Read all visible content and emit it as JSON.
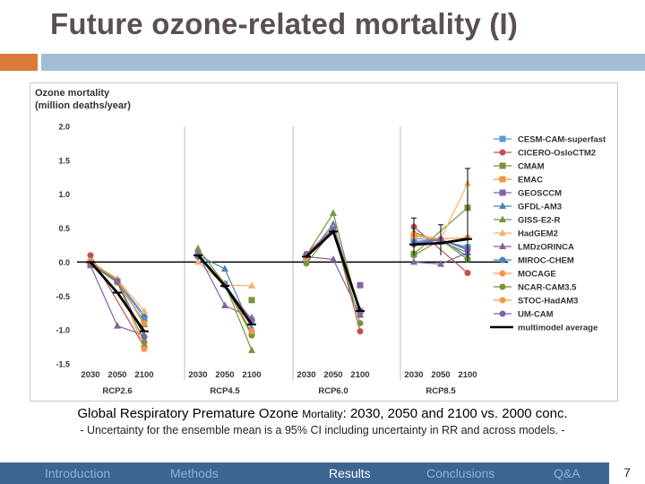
{
  "slide": {
    "title": "Future ozone-related mortality (I)",
    "caption_main": "Global Respiratory Premature Ozone",
    "caption_small": "Mortality",
    "caption_rest": ": 2030, 2050 and 2100 vs. 2000 conc.",
    "caption_note": "- Uncertainty for the ensemble mean is a 95% CI including uncertainty in RR and across models. -",
    "page_number": "7",
    "colors": {
      "orange_bar": "#dc7a3c",
      "blue_bar": "#a4bdd5",
      "nav_bg": "#3d6591"
    }
  },
  "nav": {
    "items": [
      {
        "label": "Introduction",
        "active": false
      },
      {
        "label": "Methods",
        "active": false
      },
      {
        "label": "Results",
        "active": true
      },
      {
        "label": "Conclusions",
        "active": false
      },
      {
        "label": "Q&A",
        "active": false
      }
    ]
  },
  "chart_data": {
    "type": "line",
    "ylabel_line1": "Ozone mortality",
    "ylabel_line2": "(million deaths/year)",
    "ylim": [
      -1.5,
      2.0
    ],
    "yticks": [
      "2.0",
      "1.5",
      "1.0",
      "0.5",
      "0.0",
      "-0.5",
      "-1.0",
      "-1.5"
    ],
    "groups": [
      "RCP2.6",
      "RCP4.5",
      "RCP6.0",
      "RCP8.5"
    ],
    "x": [
      "2030",
      "2050",
      "2100"
    ],
    "grid": false,
    "legend_position": "right",
    "series": [
      {
        "name": "CESM-CAM-superfast",
        "color": "#5b9bd5",
        "marker": "square",
        "values": [
          [
            -0.03,
            -0.28,
            -0.82
          ],
          [
            0.12,
            -0.32,
            -0.88
          ],
          [
            0.08,
            0.48,
            -0.72
          ],
          [
            0.35,
            0.32,
            0.22
          ]
        ]
      },
      {
        "name": "CICERO-OsloCTM2",
        "color": "#c0504d",
        "marker": "circle",
        "values": [
          [
            0.1,
            null,
            -1.25
          ],
          [
            null,
            null,
            null
          ],
          [
            0.12,
            0.5,
            -1.02
          ],
          [
            0.52,
            null,
            -0.16
          ]
        ]
      },
      {
        "name": "CMAM",
        "color": "#77933c",
        "marker": "square",
        "values": [
          [
            null,
            null,
            null
          ],
          [
            null,
            null,
            -0.56
          ],
          [
            null,
            null,
            null
          ],
          [
            0.12,
            null,
            0.8
          ]
        ]
      },
      {
        "name": "EMAC",
        "color": "#f79646",
        "marker": "square",
        "values": [
          [
            null,
            null,
            null
          ],
          [
            null,
            null,
            null
          ],
          [
            null,
            null,
            null
          ],
          [
            null,
            null,
            null
          ]
        ]
      },
      {
        "name": "GEOSCCM",
        "color": "#8064a2",
        "marker": "square",
        "values": [
          [
            null,
            null,
            null
          ],
          [
            null,
            null,
            null
          ],
          [
            null,
            null,
            -0.34
          ],
          [
            null,
            null,
            null
          ]
        ]
      },
      {
        "name": "GFDL-AM3",
        "color": "#4f81bd",
        "marker": "triangle",
        "values": [
          [
            -0.02,
            -0.28,
            -0.78
          ],
          [
            0.1,
            -0.1,
            -0.98
          ],
          [
            0.06,
            0.56,
            -0.72
          ],
          [
            0.3,
            0.34,
            0.08
          ]
        ]
      },
      {
        "name": "GISS-E2-R",
        "color": "#77933c",
        "marker": "triangle",
        "values": [
          [
            0.0,
            -0.25,
            -0.92
          ],
          [
            0.2,
            -0.32,
            -1.3
          ],
          [
            0.1,
            0.72,
            -0.78
          ],
          [
            0.44,
            0.3,
            0.14
          ]
        ]
      },
      {
        "name": "HadGEM2",
        "color": "#f7b26a",
        "marker": "triangle",
        "values": [
          [
            -0.02,
            -0.26,
            -0.72
          ],
          [
            0.0,
            -0.34,
            -0.35
          ],
          [
            0.08,
            0.5,
            -0.7
          ],
          [
            0.38,
            0.34,
            1.16
          ]
        ]
      },
      {
        "name": "LMDzORINCA",
        "color": "#8064a2",
        "marker": "triangle",
        "values": [
          [
            -0.05,
            -0.94,
            -1.08
          ],
          [
            0.12,
            -0.64,
            -0.82
          ],
          [
            0.08,
            0.04,
            -0.78
          ],
          [
            0.0,
            -0.03,
            0.14
          ]
        ]
      },
      {
        "name": "MIROC-CHEM",
        "color": "#4f81bd",
        "marker": "circle",
        "values": [
          [
            -0.02,
            -0.3,
            -0.88
          ],
          [
            0.08,
            -0.34,
            -1.06
          ],
          [
            0.08,
            0.46,
            -0.72
          ],
          [
            0.28,
            0.33,
            0.2
          ]
        ]
      },
      {
        "name": "MOCAGE",
        "color": "#f79646",
        "marker": "circle",
        "values": [
          [
            -0.03,
            -0.27,
            -1.28
          ],
          [
            null,
            null,
            null
          ],
          [
            null,
            null,
            null
          ],
          [
            null,
            null,
            null
          ]
        ]
      },
      {
        "name": "NCAR-CAM3.5",
        "color": "#77933c",
        "marker": "circle",
        "values": [
          [
            -0.03,
            -0.3,
            -1.18
          ],
          [
            0.1,
            -0.33,
            -1.08
          ],
          [
            -0.02,
            0.48,
            -0.9
          ],
          [
            0.1,
            0.33,
            0.04
          ]
        ]
      },
      {
        "name": "STOC-HadAM3",
        "color": "#f79646",
        "marker": "circle",
        "values": [
          [
            0.02,
            -0.27,
            -0.9
          ],
          [
            0.1,
            -0.33,
            -1.02
          ],
          [
            0.06,
            0.48,
            -0.74
          ],
          [
            0.4,
            0.34,
            0.36
          ]
        ]
      },
      {
        "name": "UM-CAM",
        "color": "#8064a2",
        "marker": "circle",
        "values": [
          [
            -0.02,
            -0.28,
            -1.1
          ],
          [
            0.1,
            -0.34,
            -0.85
          ],
          [
            0.1,
            0.48,
            -0.74
          ],
          [
            0.26,
            0.33,
            0.18
          ]
        ]
      },
      {
        "name": "multimodel average",
        "color": "#000000",
        "marker": "dash",
        "values": [
          [
            0.0,
            -0.45,
            -1.02
          ],
          [
            0.1,
            -0.35,
            -0.92
          ],
          [
            0.08,
            0.45,
            -0.72
          ],
          [
            0.26,
            0.28,
            0.34
          ]
        ]
      }
    ],
    "multimodel_ci": [
      [
        null,
        null,
        null
      ],
      [
        null,
        null,
        null
      ],
      [
        null,
        null,
        null
      ],
      [
        [
          0.1,
          0.65
        ],
        [
          0.1,
          0.55
        ],
        [
          0.0,
          1.38
        ]
      ]
    ]
  }
}
